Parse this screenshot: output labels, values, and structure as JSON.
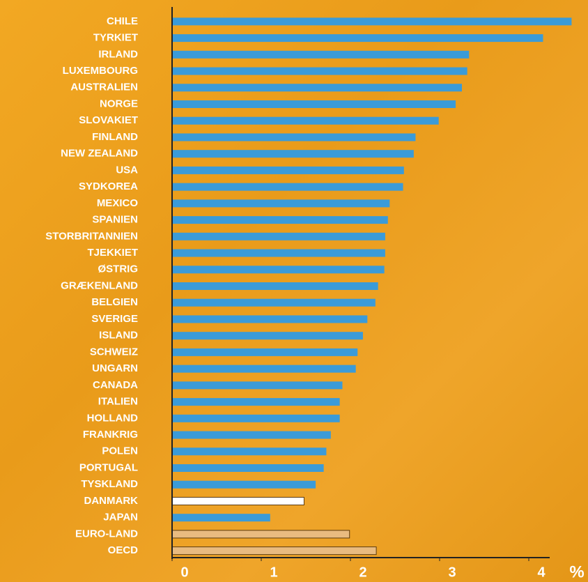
{
  "chart_data": {
    "type": "hbar",
    "categories": [
      "CHILE",
      "TYRKIET",
      "IRLAND",
      "LUXEMBOURG",
      "AUSTRALIEN",
      "NORGE",
      "SLOVAKIET",
      "FINLAND",
      "NEW ZEALAND",
      "USA",
      "SYDKOREA",
      "MEXICO",
      "SPANIEN",
      "STORBRITANNIEN",
      "TJEKKIET",
      "ØSTRIG",
      "GRÆKENLAND",
      "BELGIEN",
      "SVERIGE",
      "ISLAND",
      "SCHWEIZ",
      "UNGARN",
      "CANADA",
      "ITALIEN",
      "HOLLAND",
      "FRANKRIG",
      "POLEN",
      "PORTUGAL",
      "TYSKLAND",
      "DANMARK",
      "JAPAN",
      "EURO-LAND",
      "OECD"
    ],
    "values": [
      4.48,
      4.16,
      3.33,
      3.31,
      3.25,
      3.18,
      2.99,
      2.73,
      2.71,
      2.6,
      2.59,
      2.44,
      2.42,
      2.39,
      2.39,
      2.38,
      2.31,
      2.28,
      2.19,
      2.14,
      2.08,
      2.06,
      1.91,
      1.88,
      1.88,
      1.78,
      1.73,
      1.7,
      1.61,
      1.48,
      1.1,
      1.99,
      2.29
    ],
    "colors": [
      "#3b9bd8",
      "#3b9bd8",
      "#3b9bd8",
      "#3b9bd8",
      "#3b9bd8",
      "#3b9bd8",
      "#3b9bd8",
      "#3b9bd8",
      "#3b9bd8",
      "#3b9bd8",
      "#3b9bd8",
      "#3b9bd8",
      "#3b9bd8",
      "#3b9bd8",
      "#3b9bd8",
      "#3b9bd8",
      "#3b9bd8",
      "#3b9bd8",
      "#3b9bd8",
      "#3b9bd8",
      "#3b9bd8",
      "#3b9bd8",
      "#3b9bd8",
      "#3b9bd8",
      "#3b9bd8",
      "#3b9bd8",
      "#3b9bd8",
      "#3b9bd8",
      "#3b9bd8",
      "#ffffff",
      "#3b9bd8",
      "#e9bb80",
      "#e9bb80"
    ],
    "xlim": [
      0,
      4.5
    ],
    "xticks": [
      0,
      1,
      2,
      3,
      4
    ],
    "x_unit": "%"
  }
}
